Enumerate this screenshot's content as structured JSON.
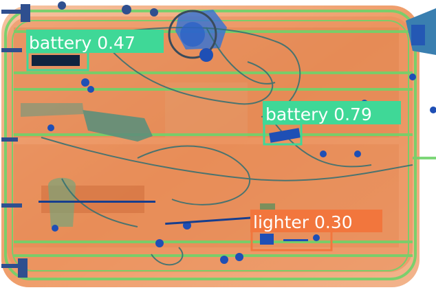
{
  "image": {
    "subject": "x-ray baggage scan",
    "palette": {
      "background": "#ffffff",
      "bag_tint": "#f3b592",
      "organic": "#e98a52",
      "dense_organic": "#d8703a",
      "rails": "#6fd36a",
      "metal": "#1f4fb5",
      "wires": "#2f6f73",
      "dark_edges": "#3a4b5a"
    }
  },
  "detections": [
    {
      "label": "battery",
      "score": "0.47",
      "text": "battery 0.47",
      "color": "#3fd897"
    },
    {
      "label": "battery",
      "score": "0.79",
      "text": "battery 0.79",
      "color": "#3fd897"
    },
    {
      "label": "lighter",
      "score": "0.30",
      "text": "lighter 0.30",
      "color": "#f2763d"
    }
  ]
}
